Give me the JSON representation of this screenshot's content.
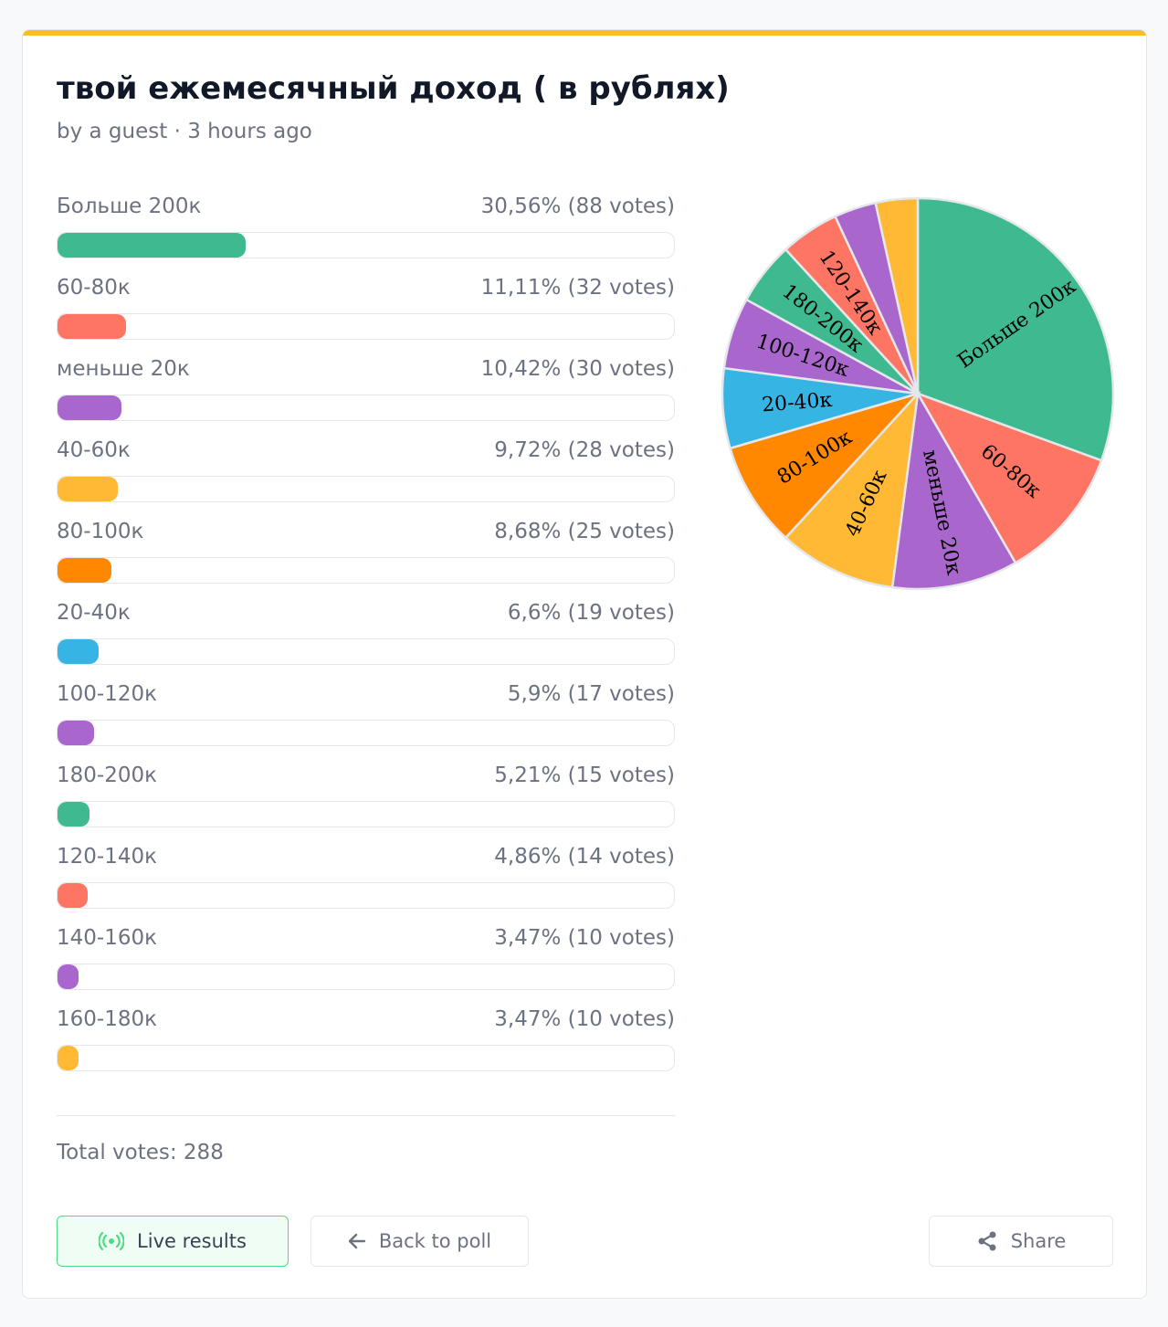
{
  "poll": {
    "title": "твой ежемесячный доход ( в рублях)",
    "subtitle": "by a guest · 3 hours ago",
    "accent_color": "#fbbf24",
    "total_votes": "Total votes: 288"
  },
  "buttons": {
    "live_results": "Live results",
    "back_to_poll": "Back to poll",
    "share": "Share"
  },
  "icons": {
    "live": "broadcast-icon",
    "back": "arrow-left-icon",
    "share": "share-icon"
  },
  "answers": [
    {
      "label": "Больше 200к",
      "stat": "30,56% (88 votes)",
      "color": "#3fb98f"
    },
    {
      "label": "60-80к",
      "stat": "11,11% (32 votes)",
      "color": "#ff7563"
    },
    {
      "label": "меньше 20к",
      "stat": "10,42% (30 votes)",
      "color": "#a966cc"
    },
    {
      "label": "40-60к",
      "stat": "9,72% (28 votes)",
      "color": "#ffb934"
    },
    {
      "label": "80-100к",
      "stat": "8,68% (25 votes)",
      "color": "#ff8800"
    },
    {
      "label": "20-40к",
      "stat": "6,6% (19 votes)",
      "color": "#36b5e4"
    },
    {
      "label": "100-120к",
      "stat": "5,9% (17 votes)",
      "color": "#a966cc"
    },
    {
      "label": "180-200к",
      "stat": "5,21% (15 votes)",
      "color": "#3fb98f"
    },
    {
      "label": "120-140к",
      "stat": "4,86% (14 votes)",
      "color": "#ff7563"
    },
    {
      "label": "140-160к",
      "stat": "3,47% (10 votes)",
      "color": "#a966cc"
    },
    {
      "label": "160-180к",
      "stat": "3,47% (10 votes)",
      "color": "#ffb934"
    }
  ],
  "chart_data": {
    "type": "pie",
    "categories": [
      "Больше 200к",
      "60-80к",
      "меньше 20к",
      "40-60к",
      "80-100к",
      "20-40к",
      "100-120к",
      "180-200к",
      "120-140к",
      "140-160к",
      "160-180к"
    ],
    "values": [
      88,
      32,
      30,
      28,
      25,
      19,
      17,
      15,
      14,
      10,
      10
    ],
    "percent": [
      30.56,
      11.11,
      10.42,
      9.72,
      8.68,
      6.6,
      5.9,
      5.21,
      4.86,
      3.47,
      3.47
    ],
    "slice_labels": [
      "Больше 200к",
      "60-80к",
      "меньше 20к",
      "40-60к",
      "80-100к",
      "20-40к",
      "100-120к",
      "180-200к",
      "120-140к",
      "",
      ""
    ],
    "colors": [
      "#3fb98f",
      "#ff7563",
      "#a966cc",
      "#ffb934",
      "#ff8800",
      "#36b5e4",
      "#a966cc",
      "#3fb98f",
      "#ff7563",
      "#a966cc",
      "#ffb934"
    ]
  }
}
